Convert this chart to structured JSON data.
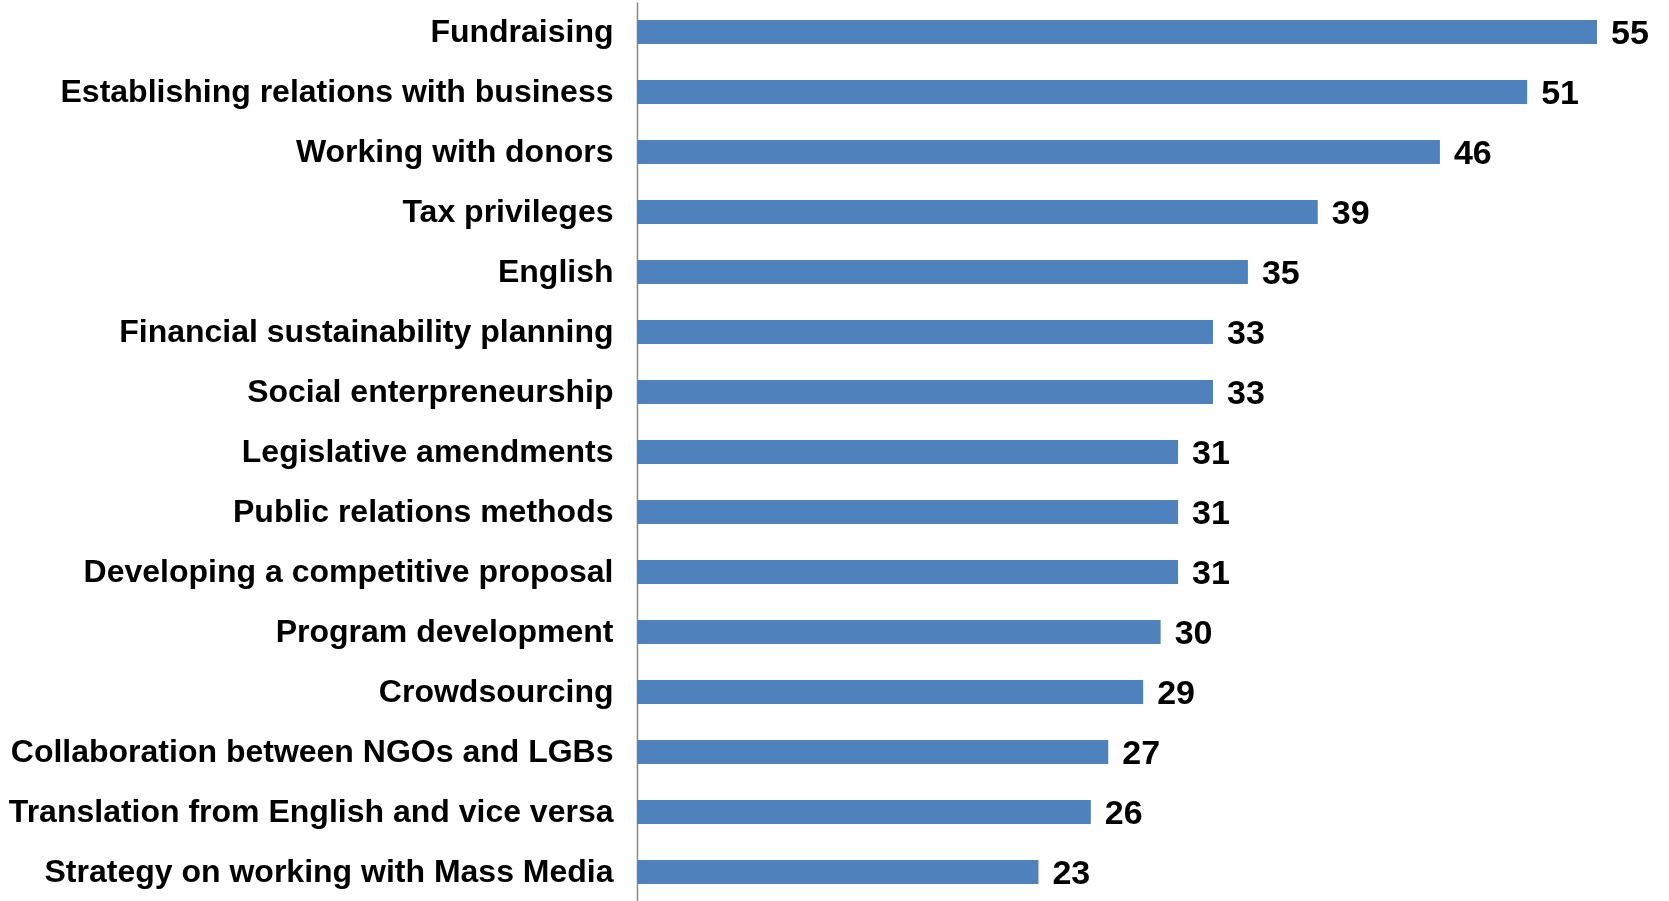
{
  "chart_data": {
    "type": "bar",
    "orientation": "horizontal",
    "categories": [
      "Fundraising",
      "Establishing relations with business",
      "Working with donors",
      "Tax privileges",
      "English",
      "Financial sustainability planning",
      "Social enterpreneurship",
      "Legislative amendments",
      "Public relations methods",
      "Developing a competitive proposal",
      "Program development",
      "Crowdsourcing",
      "Collaboration between NGOs and LGBs",
      "Translation from English and vice versa",
      "Strategy on working with Mass Media"
    ],
    "values": [
      55,
      51,
      46,
      39,
      35,
      33,
      33,
      31,
      31,
      31,
      30,
      29,
      27,
      26,
      23
    ],
    "color": "#4f81bd",
    "data_labels": true,
    "tick_labels": "y"
  }
}
